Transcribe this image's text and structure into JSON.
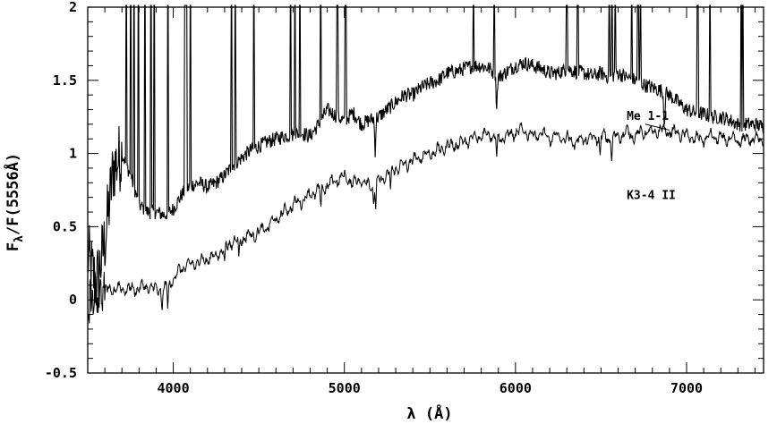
{
  "chart_data": {
    "type": "line",
    "title": "",
    "xlabel": "λ (Å)",
    "ylabel": "Fλ/F(5556Å)",
    "xlim": [
      3500,
      7450
    ],
    "ylim": [
      -0.5,
      2
    ],
    "xticks": [
      4000,
      5000,
      6000,
      7000
    ],
    "xtick_labels": [
      "4000",
      "5000",
      "6000",
      "7000"
    ],
    "yticks": [
      -0.5,
      0,
      0.5,
      1,
      1.5,
      2
    ],
    "ytick_labels": [
      "-0.5",
      "0",
      "0.5",
      "1",
      "1.5",
      "2"
    ],
    "grid": false,
    "legend": "none",
    "annotations": [
      {
        "text": "Me 1-1",
        "x": 6650,
        "y": 1.23
      },
      {
        "text": "K3-4 II",
        "x": 6650,
        "y": 0.69
      }
    ],
    "series": [
      {
        "label": "Me 1-1",
        "x": [
          3500,
          3550,
          3600,
          3650,
          3700,
          3750,
          3800,
          3850,
          3900,
          3950,
          4000,
          4050,
          4100,
          4150,
          4200,
          4250,
          4300,
          4350,
          4400,
          4450,
          4500,
          4550,
          4600,
          4650,
          4700,
          4750,
          4800,
          4850,
          4900,
          4950,
          5000,
          5050,
          5100,
          5150,
          5200,
          5250,
          5300,
          5350,
          5400,
          5450,
          5500,
          5550,
          5600,
          5650,
          5700,
          5750,
          5800,
          5850,
          5900,
          5950,
          6000,
          6050,
          6100,
          6150,
          6200,
          6250,
          6300,
          6350,
          6400,
          6450,
          6500,
          6550,
          6600,
          6650,
          6700,
          6750,
          6800,
          6850,
          6900,
          6950,
          7000,
          7050,
          7100,
          7150,
          7200,
          7250,
          7300,
          7350,
          7400,
          7450
        ],
        "y": [
          0.3,
          0.1,
          0.4,
          0.9,
          1.0,
          0.85,
          0.65,
          0.6,
          0.6,
          0.58,
          0.62,
          0.72,
          0.78,
          0.8,
          0.77,
          0.8,
          0.85,
          0.92,
          0.97,
          1.02,
          1.05,
          1.08,
          1.1,
          1.12,
          1.13,
          1.14,
          1.12,
          1.2,
          1.3,
          1.26,
          1.22,
          1.28,
          1.2,
          1.23,
          1.25,
          1.3,
          1.35,
          1.4,
          1.4,
          1.45,
          1.48,
          1.5,
          1.55,
          1.56,
          1.58,
          1.6,
          1.6,
          1.58,
          1.52,
          1.56,
          1.6,
          1.62,
          1.6,
          1.58,
          1.55,
          1.55,
          1.58,
          1.56,
          1.55,
          1.53,
          1.55,
          1.52,
          1.55,
          1.52,
          1.5,
          1.47,
          1.45,
          1.43,
          1.4,
          1.35,
          1.3,
          1.28,
          1.27,
          1.25,
          1.25,
          1.23,
          1.2,
          1.2,
          1.2,
          1.18
        ],
        "emission_lines": [
          3726,
          3750,
          3770,
          3797,
          3835,
          3869,
          3889,
          3968,
          4069,
          4076,
          4101,
          4340,
          4363,
          4471,
          4686,
          4711,
          4740,
          4861,
          4959,
          5007,
          5755,
          5876,
          6300,
          6364,
          6548,
          6563,
          6584,
          6678,
          6716,
          6731,
          7065,
          7136,
          7320,
          7330
        ],
        "absorption_lines": [
          5180,
          5890,
          6870
        ]
      },
      {
        "label": "K3-4 II",
        "x": [
          3500,
          3550,
          3600,
          3650,
          3700,
          3750,
          3800,
          3850,
          3900,
          3950,
          4000,
          4050,
          4100,
          4150,
          4200,
          4250,
          4300,
          4350,
          4400,
          4450,
          4500,
          4550,
          4600,
          4650,
          4700,
          4750,
          4800,
          4850,
          4900,
          4950,
          5000,
          5050,
          5100,
          5150,
          5200,
          5250,
          5300,
          5350,
          5400,
          5450,
          5500,
          5550,
          5600,
          5650,
          5700,
          5750,
          5800,
          5850,
          5900,
          5950,
          6000,
          6050,
          6100,
          6150,
          6200,
          6250,
          6300,
          6350,
          6400,
          6450,
          6500,
          6550,
          6600,
          6650,
          6700,
          6750,
          6800,
          6850,
          6900,
          6950,
          7000,
          7050,
          7100,
          7150,
          7200,
          7250,
          7300,
          7350,
          7400,
          7450
        ],
        "y": [
          0.03,
          0.05,
          0.06,
          0.07,
          0.08,
          0.07,
          0.08,
          0.09,
          0.07,
          0.07,
          0.14,
          0.22,
          0.24,
          0.26,
          0.28,
          0.3,
          0.36,
          0.4,
          0.42,
          0.44,
          0.46,
          0.5,
          0.55,
          0.6,
          0.65,
          0.68,
          0.72,
          0.75,
          0.78,
          0.82,
          0.84,
          0.8,
          0.82,
          0.78,
          0.8,
          0.86,
          0.9,
          0.92,
          0.95,
          0.98,
          1.0,
          1.02,
          1.05,
          1.06,
          1.08,
          1.1,
          1.12,
          1.14,
          1.1,
          1.12,
          1.14,
          1.16,
          1.12,
          1.14,
          1.1,
          1.12,
          1.1,
          1.08,
          1.1,
          1.1,
          1.12,
          1.1,
          1.12,
          1.14,
          1.12,
          1.15,
          1.14,
          1.16,
          1.15,
          1.14,
          1.12,
          1.1,
          1.1,
          1.12,
          1.1,
          1.1,
          1.08,
          1.1,
          1.1,
          1.1
        ],
        "absorption_lines": [
          3934,
          3968,
          4300,
          4383,
          4862,
          5170,
          5183,
          5270,
          5890,
          6495,
          6563
        ]
      }
    ]
  }
}
